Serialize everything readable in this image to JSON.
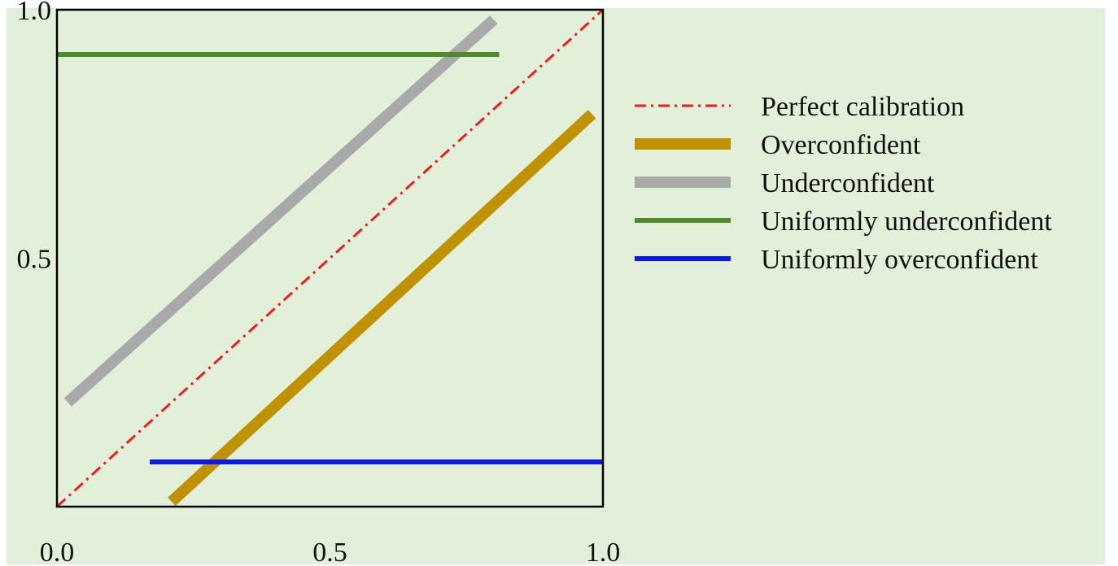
{
  "chart_data": {
    "type": "line",
    "title": "",
    "xlabel": "",
    "ylabel": "",
    "xlim": [
      0.0,
      1.0
    ],
    "ylim": [
      0.0,
      1.0
    ],
    "grid": false,
    "legend_position": "right",
    "x_ticks": [
      "0.0",
      "0.5",
      "1.0"
    ],
    "y_ticks": [
      "0.5",
      "1.0"
    ],
    "background": "#e3f0d9",
    "series": [
      {
        "name": "Perfect calibration",
        "x": [
          0.0,
          1.0
        ],
        "y": [
          0.0,
          1.0
        ],
        "color": "#ee1c1c",
        "style": "dash-dot",
        "weight": "thin"
      },
      {
        "name": "Overconfident",
        "x": [
          0.21,
          0.98
        ],
        "y": [
          0.01,
          0.79
        ],
        "color": "#c09100",
        "style": "solid",
        "weight": "heavy"
      },
      {
        "name": "Underconfident",
        "x": [
          0.02,
          0.8
        ],
        "y": [
          0.21,
          0.98
        ],
        "color": "#a9a9a9",
        "style": "solid",
        "weight": "heavy"
      },
      {
        "name": "Uniformly underconfident",
        "x": [
          0.0,
          0.81
        ],
        "y": [
          0.91,
          0.91
        ],
        "color": "#4f8a2b",
        "style": "solid",
        "weight": "medium"
      },
      {
        "name": "Uniformly overconfident",
        "x": [
          0.17,
          1.0
        ],
        "y": [
          0.09,
          0.09
        ],
        "color": "#0a18ee",
        "style": "solid",
        "weight": "medium"
      }
    ]
  }
}
